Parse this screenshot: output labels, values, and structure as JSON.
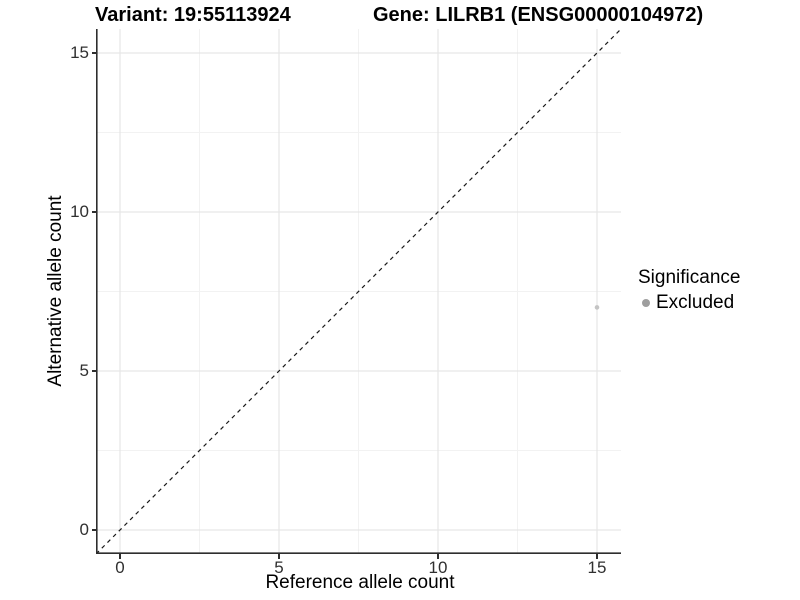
{
  "header": {
    "variant_title": "Variant: 19:55113924",
    "gene_title": "Gene: LILRB1 (ENSG00000104972)"
  },
  "x_axis": {
    "label": "Reference allele count",
    "tick_labels": [
      "0",
      "5",
      "10",
      "15"
    ]
  },
  "y_axis": {
    "label": "Alternative allele count",
    "tick_labels": [
      "0",
      "5",
      "10",
      "15"
    ]
  },
  "legend": {
    "title": "Significance",
    "entries": [
      {
        "label": "Excluded",
        "color": "#9e9e9e"
      }
    ]
  },
  "colors": {
    "background": "#ffffff",
    "major_grid": "#e6e6e6",
    "minor_grid": "#f2f2f2",
    "axis_line": "#2e2e2e",
    "tick_mark": "#2e2e2e",
    "dashed_line": "#1a1a1a",
    "point": "#c4c4c4"
  },
  "chart_data": {
    "type": "scatter",
    "title": "Variant: 19:55113924  /  Gene: LILRB1 (ENSG00000104972)",
    "xlabel": "Reference allele count",
    "ylabel": "Alternative allele count",
    "xlim": [
      -0.75,
      15.75
    ],
    "ylim": [
      -0.75,
      15.75
    ],
    "x_major_ticks": [
      0,
      5,
      10,
      15
    ],
    "y_major_ticks": [
      0,
      5,
      10,
      15
    ],
    "x_minor_ticks": [
      2.5,
      7.5,
      12.5
    ],
    "y_minor_ticks": [
      2.5,
      7.5,
      12.5
    ],
    "grid": "major+minor",
    "legend_position": "right",
    "series": [
      {
        "name": "Excluded",
        "color": "#c4c4c4",
        "point_radius": 2.3,
        "points": [
          [
            15,
            7
          ]
        ]
      }
    ],
    "annotations": [
      {
        "type": "reference-line",
        "equation": "y = x",
        "style": "dashed",
        "from": [
          -0.75,
          -0.75
        ],
        "to": [
          15.75,
          15.75
        ],
        "color": "#1a1a1a"
      }
    ]
  }
}
